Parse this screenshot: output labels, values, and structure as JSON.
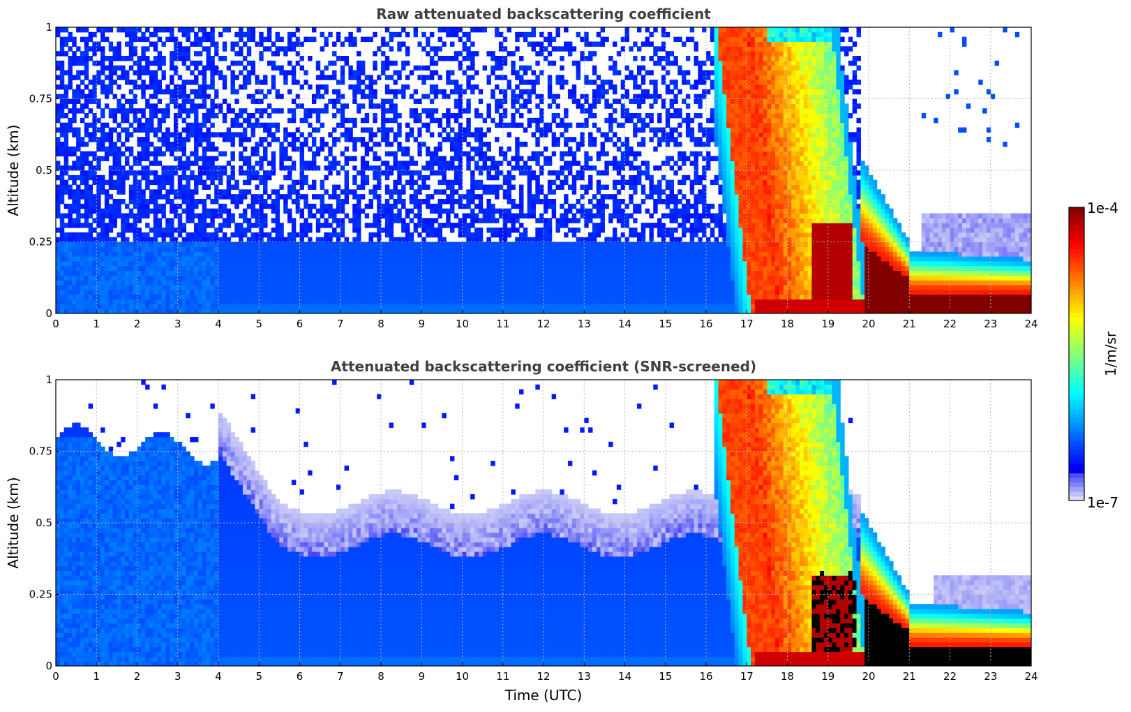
{
  "chart_data": [
    {
      "type": "heatmap",
      "title": "Raw attenuated backscattering coefficient",
      "xlabel": "",
      "ylabel": "Altitude (km)",
      "xlim": [
        0,
        24
      ],
      "ylim": [
        0,
        1
      ],
      "x_ticks": [
        "0",
        "1",
        "2",
        "3",
        "4",
        "5",
        "6",
        "7",
        "8",
        "9",
        "10",
        "11",
        "12",
        "13",
        "14",
        "15",
        "16",
        "17",
        "18",
        "19",
        "20",
        "21",
        "22",
        "23",
        "24"
      ],
      "y_ticks": [
        "0",
        "0.25",
        "0.5",
        "0.75",
        "1"
      ],
      "grid": true,
      "colorscale": "jet",
      "screened": false
    },
    {
      "type": "heatmap",
      "title": "Attenuated backscattering coefficient (SNR-screened)",
      "xlabel": "Time (UTC)",
      "ylabel": "Altitude (km)",
      "xlim": [
        0,
        24
      ],
      "ylim": [
        0,
        1
      ],
      "x_ticks": [
        "0",
        "1",
        "2",
        "3",
        "4",
        "5",
        "6",
        "7",
        "8",
        "9",
        "10",
        "11",
        "12",
        "13",
        "14",
        "15",
        "16",
        "17",
        "18",
        "19",
        "20",
        "21",
        "22",
        "23",
        "24"
      ],
      "y_ticks": [
        "0",
        "0.25",
        "0.5",
        "0.75",
        "1"
      ],
      "grid": true,
      "colorscale": "jet",
      "screened": true
    }
  ],
  "colorbar": {
    "label": "1/m/sr",
    "max_label": "1e-4",
    "min_label": "1e-7",
    "range": [
      1e-07,
      0.0001
    ],
    "scale": "log"
  }
}
